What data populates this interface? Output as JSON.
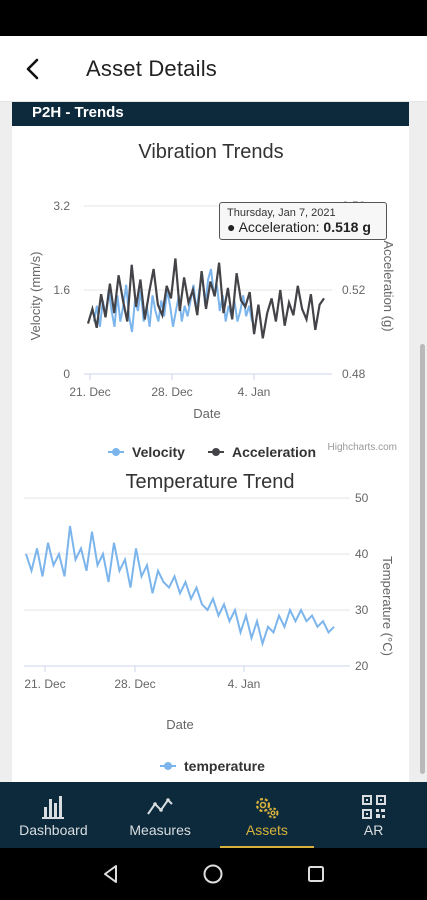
{
  "header": {
    "title": "Asset Details"
  },
  "card": {
    "title": "P2H - Trends"
  },
  "vibration_chart": {
    "title": "Vibration Trends",
    "xlabel": "Date",
    "ylabel_left": "Velocity (mm/s)",
    "ylabel_right": "Acceleration (g)",
    "left_ticks": [
      "3.2",
      "1.6",
      "0"
    ],
    "right_ticks": [
      "0.56",
      "0.52",
      "0.48"
    ],
    "x_ticks": [
      "21. Dec",
      "28. Dec",
      "4. Jan"
    ],
    "legend": [
      "Velocity",
      "Acceleration"
    ],
    "credit": "Highcharts.com",
    "tooltip": {
      "date": "Thursday, Jan 7, 2021",
      "series": "Acceleration",
      "value": "0.518 g"
    }
  },
  "temperature_chart": {
    "title": "Temperature Trend",
    "xlabel": "Date",
    "ylabel_right": "Temperature (°C)",
    "right_ticks": [
      "50",
      "40",
      "30",
      "20"
    ],
    "x_ticks": [
      "21. Dec",
      "28. Dec",
      "4. Jan"
    ],
    "legend": [
      "temperature"
    ],
    "credit": "Highcharts.com"
  },
  "nav": {
    "items": [
      {
        "label": "Dashboard",
        "icon": "bar-chart-icon"
      },
      {
        "label": "Measures",
        "icon": "line-chart-icon"
      },
      {
        "label": "Assets",
        "icon": "gears-icon",
        "active": true
      },
      {
        "label": "AR",
        "icon": "qr-code-icon"
      }
    ]
  },
  "colors": {
    "accent": "#d8b13c",
    "navy": "#0c2a3c",
    "velocity": "#7cb5ec",
    "acceleration": "#434348"
  },
  "chart_data": [
    {
      "type": "line",
      "title": "Vibration Trends",
      "xlabel": "Date",
      "x_range": [
        "2020-12-20",
        "2021-01-10"
      ],
      "series": [
        {
          "name": "Velocity",
          "axis": "left",
          "unit": "mm/s",
          "ylim": [
            0,
            3.2
          ],
          "values": [
            1.0,
            1.3,
            0.9,
            1.4,
            1.1,
            1.6,
            1.2,
            0.9,
            1.5,
            1.0,
            1.3,
            1.7,
            1.1,
            0.8,
            1.4,
            1.2,
            1.6,
            1.0,
            1.3,
            0.9,
            1.5,
            1.2,
            1.0,
            1.4,
            1.1,
            1.6,
            1.3,
            0.9,
            1.2,
            1.5,
            1.0,
            1.3,
            1.1,
            1.4,
            1.7,
            1.2,
            1.6,
            1.9,
            1.3,
            1.8,
            2.0,
            1.5,
            1.7,
            1.2,
            1.5,
            1.0,
            1.3,
            1.1,
            1.4,
            1.0,
            1.2,
            1.5,
            1.1,
            1.3,
            1.0
          ]
        },
        {
          "name": "Acceleration",
          "axis": "right",
          "unit": "g",
          "ylim": [
            0.48,
            0.56
          ],
          "values": [
            0.504,
            0.511,
            0.502,
            0.518,
            0.507,
            0.523,
            0.509,
            0.527,
            0.515,
            0.505,
            0.532,
            0.512,
            0.525,
            0.506,
            0.519,
            0.53,
            0.513,
            0.508,
            0.522,
            0.516,
            0.535,
            0.51,
            0.526,
            0.514,
            0.52,
            0.508,
            0.529,
            0.511,
            0.524,
            0.517,
            0.533,
            0.509,
            0.521,
            0.506,
            0.528,
            0.515,
            0.512,
            0.519,
            0.499,
            0.513,
            0.497,
            0.509,
            0.516,
            0.505,
            0.52,
            0.503,
            0.514,
            0.508,
            0.522,
            0.511,
            0.506,
            0.518,
            0.501,
            0.513,
            0.516
          ]
        }
      ]
    },
    {
      "type": "line",
      "title": "Temperature Trend",
      "xlabel": "Date",
      "x_range": [
        "2020-12-20",
        "2021-01-10"
      ],
      "ylim": [
        20,
        50
      ],
      "series": [
        {
          "name": "temperature",
          "axis": "right",
          "unit": "°C",
          "values": [
            40,
            37,
            41,
            36,
            42,
            38,
            40,
            36,
            45,
            39,
            41,
            37,
            44,
            38,
            40,
            35,
            42,
            37,
            39,
            34,
            41,
            36,
            38,
            33,
            37,
            35,
            34,
            36,
            33,
            35,
            32,
            34,
            31,
            30,
            32,
            29,
            31,
            28,
            30,
            26,
            29,
            25,
            28,
            24,
            27,
            26,
            29,
            27,
            30,
            28,
            30,
            28,
            29,
            27,
            28,
            26,
            27
          ]
        }
      ]
    }
  ]
}
